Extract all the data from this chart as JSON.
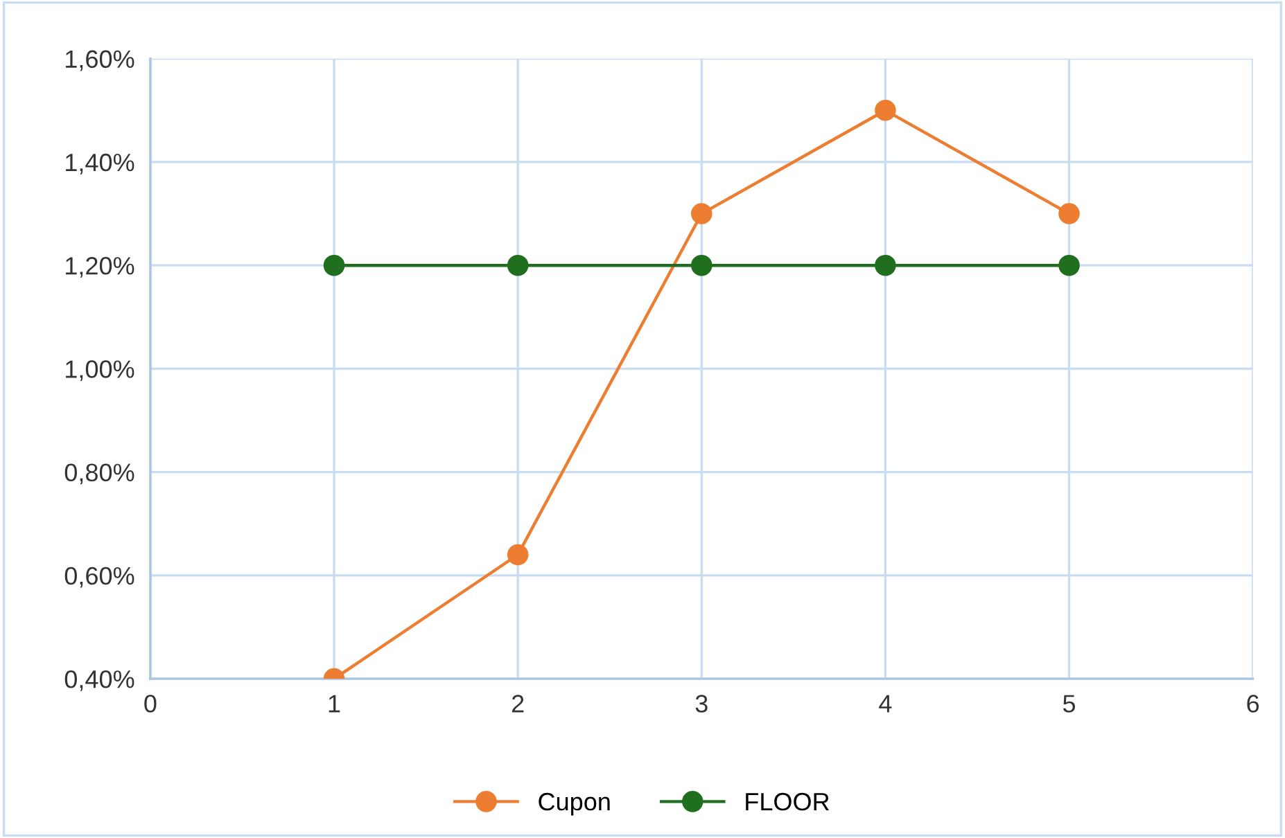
{
  "chart_data": {
    "type": "line",
    "x": [
      1,
      2,
      3,
      4,
      5
    ],
    "series": [
      {
        "name": "Cupon",
        "color": "#ed7d31",
        "values": [
          0.4,
          0.64,
          1.3,
          1.5,
          1.3
        ]
      },
      {
        "name": "FLOOR",
        "color": "#1f6f1f",
        "values": [
          1.2,
          1.2,
          1.2,
          1.2,
          1.2
        ]
      }
    ],
    "xlim": [
      0,
      6
    ],
    "xticks": [
      0,
      1,
      2,
      3,
      4,
      5,
      6
    ],
    "ylim": [
      0.4,
      1.6
    ],
    "yticks": [
      {
        "value": 0.4,
        "label": "0,40%"
      },
      {
        "value": 0.6,
        "label": "0,60%"
      },
      {
        "value": 0.8,
        "label": "0,80%"
      },
      {
        "value": 1.0,
        "label": "1,00%"
      },
      {
        "value": 1.2,
        "label": "1,20%"
      },
      {
        "value": 1.4,
        "label": "1,40%"
      },
      {
        "value": 1.6,
        "label": "1,60%"
      }
    ],
    "grid": true,
    "legend": "bottom",
    "marker": "circle",
    "line_style": "solid"
  }
}
